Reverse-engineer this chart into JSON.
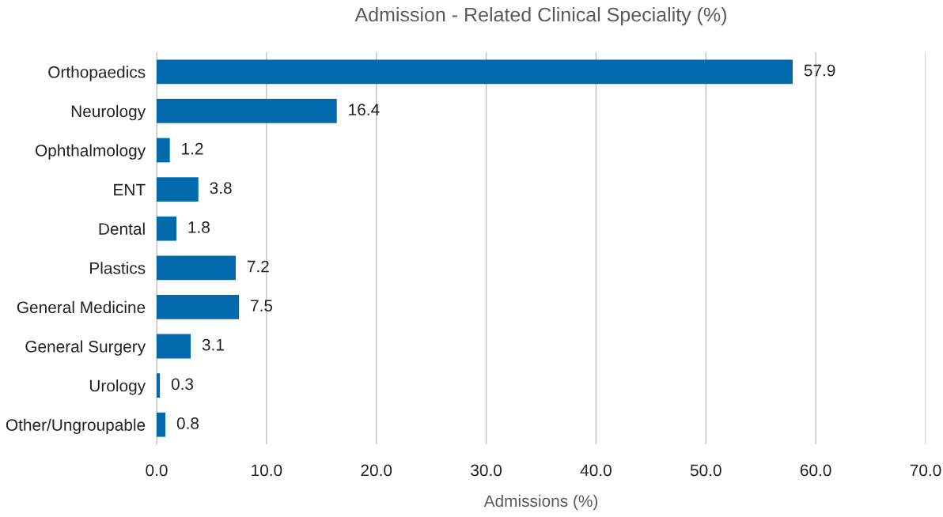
{
  "chart_data": {
    "type": "bar",
    "orientation": "horizontal",
    "title": "Admission - Related Clinical Speciality (%)",
    "xlabel": "Admissions (%)",
    "categories": [
      "Orthopaedics",
      "Neurology",
      "Ophthalmology",
      "ENT",
      "Dental",
      "Plastics",
      "General Medicine",
      "General Surgery",
      "Urology",
      "Other/Ungroupable"
    ],
    "values": [
      57.9,
      16.4,
      1.2,
      3.8,
      1.8,
      7.2,
      7.5,
      3.1,
      0.3,
      0.8
    ],
    "color": "#006aad",
    "xlim": [
      0,
      70
    ],
    "xticks": [
      {
        "value": 0,
        "label": "0.0"
      },
      {
        "value": 10,
        "label": "10.0"
      },
      {
        "value": 20,
        "label": "20.0"
      },
      {
        "value": 30,
        "label": "30.0"
      },
      {
        "value": 40,
        "label": "40.0"
      },
      {
        "value": 50,
        "label": "50.0"
      },
      {
        "value": 60,
        "label": "60.0"
      },
      {
        "value": 70,
        "label": "70.0"
      }
    ],
    "grid": "x",
    "data_labels": true
  }
}
